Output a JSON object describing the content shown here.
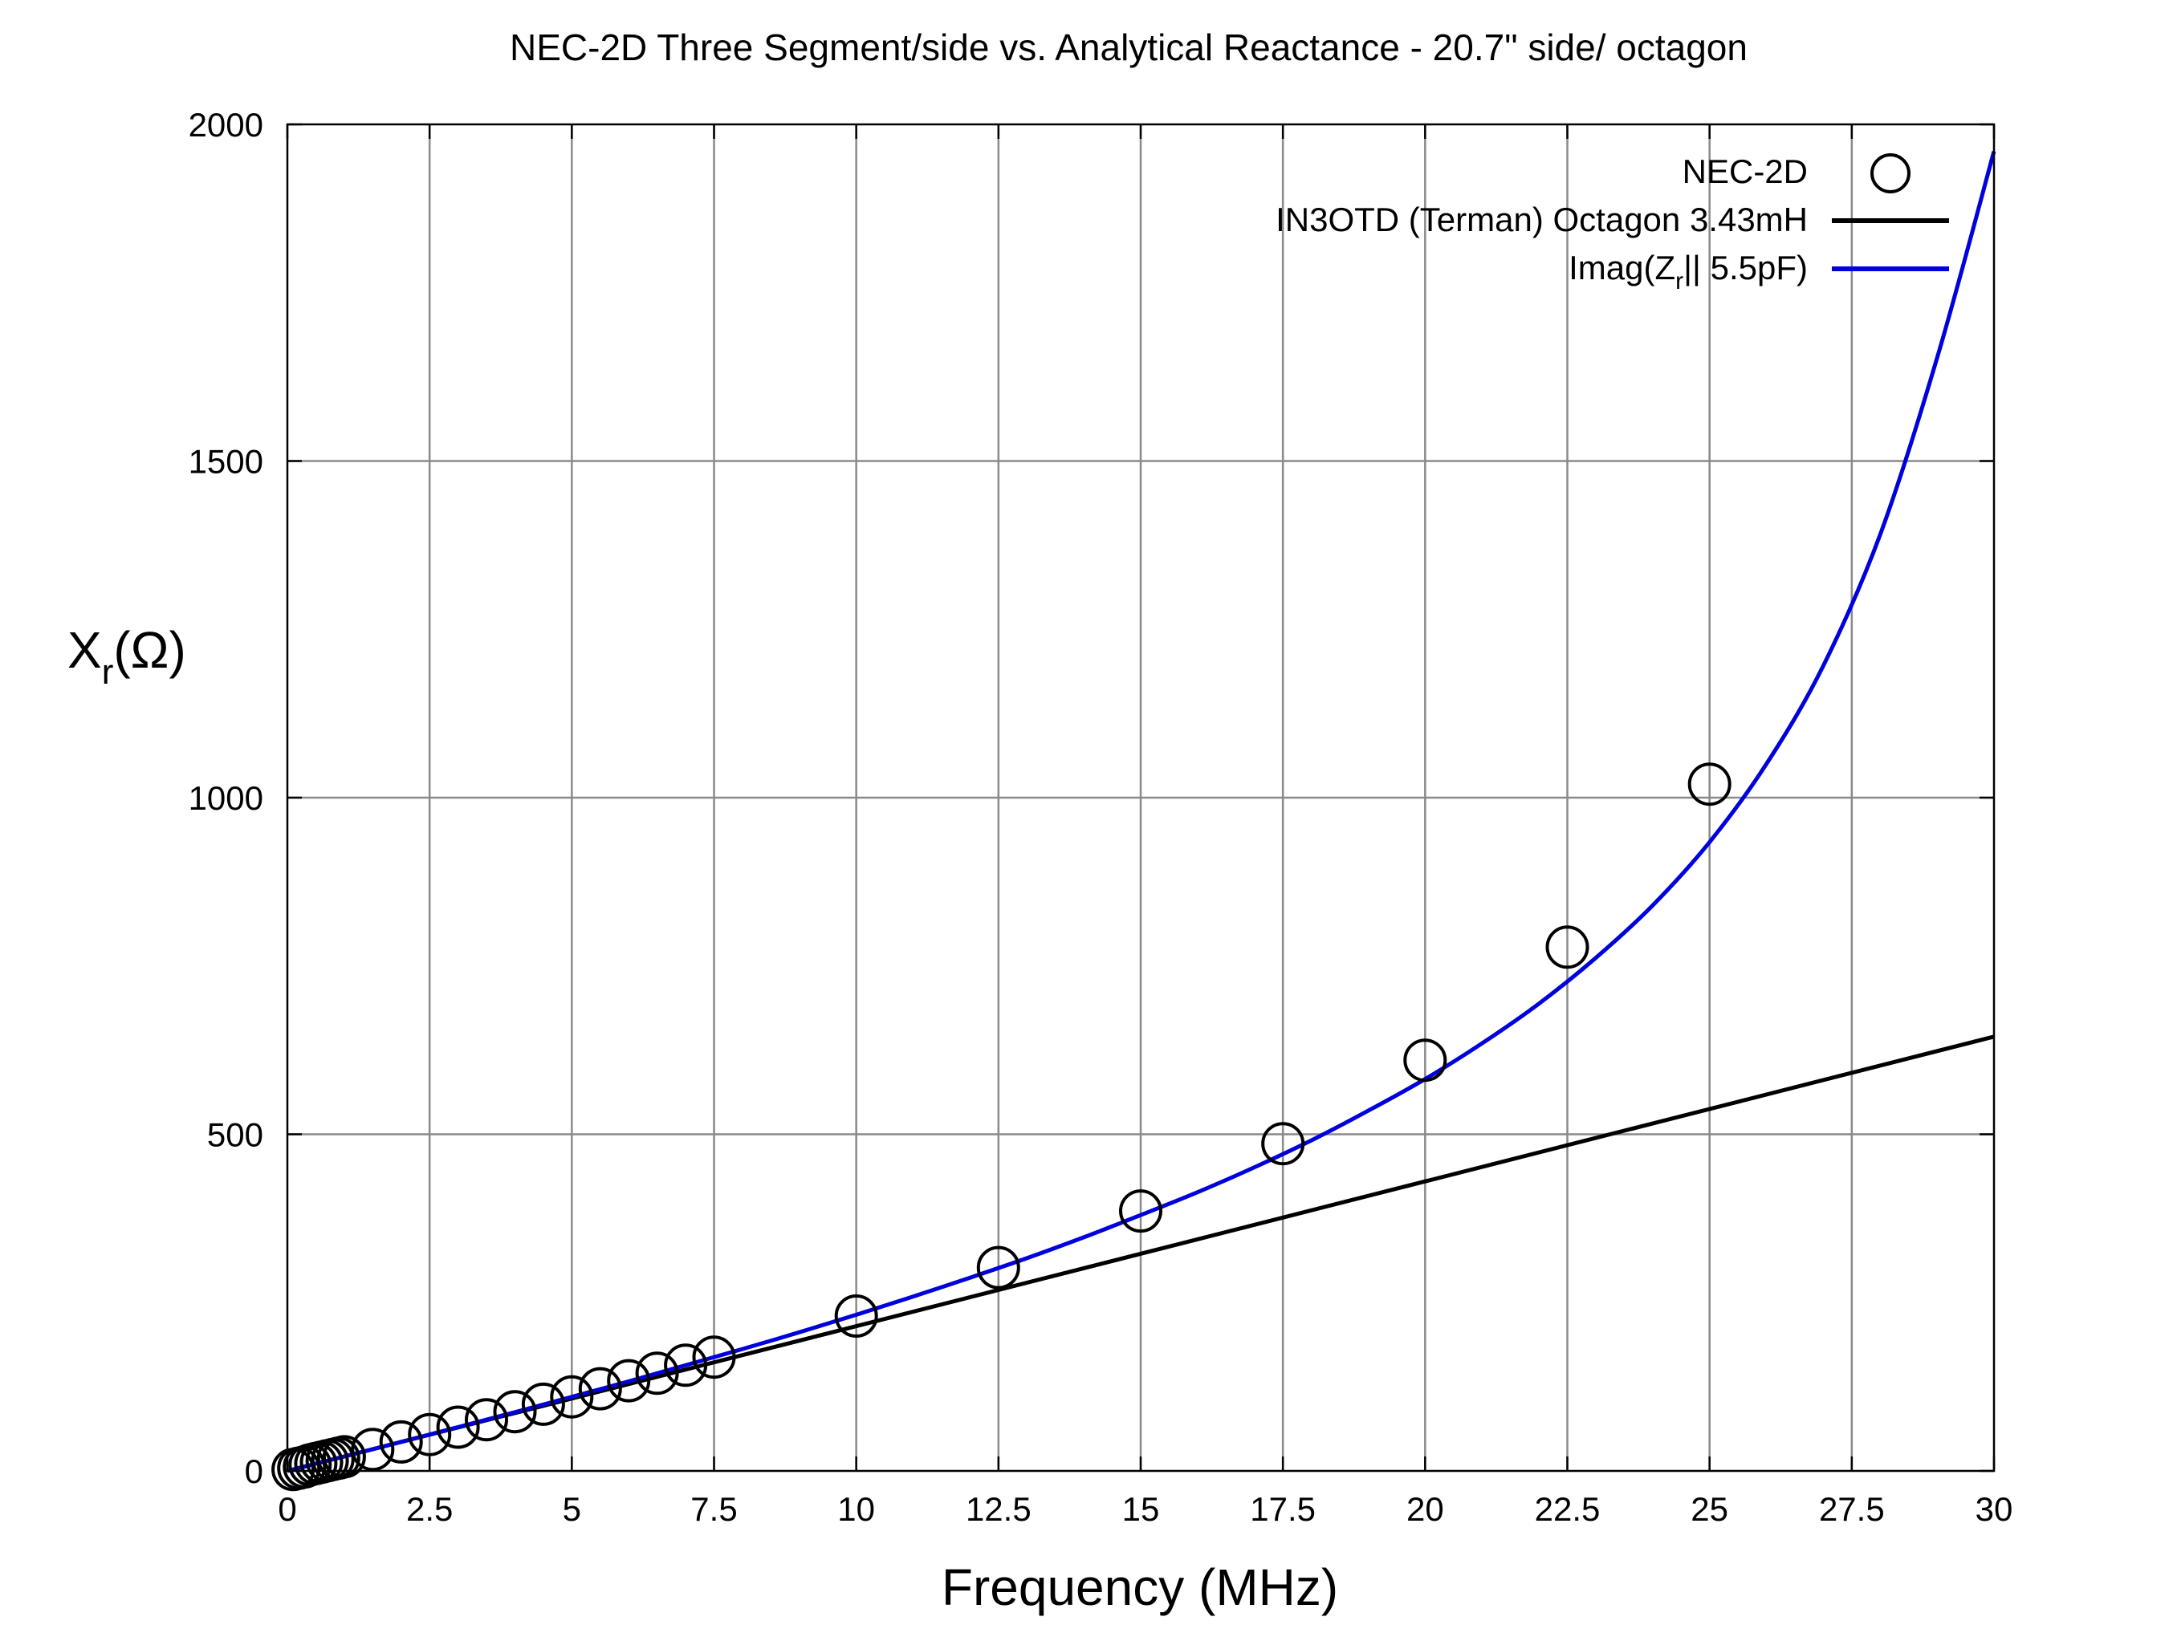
{
  "chart_data": {
    "type": "line",
    "title": "NEC-2D Three Segment/side vs. Analytical Reactance  - 20.7\" side/ octagon",
    "xlabel": "Frequency (MHz)",
    "ylabel_main": "X",
    "ylabel_sub": "r",
    "ylabel_tail": "(Ω)",
    "xlim": [
      0,
      30
    ],
    "ylim": [
      0,
      2000
    ],
    "x_ticks": [
      0,
      2.5,
      5,
      7.5,
      10,
      12.5,
      15,
      17.5,
      20,
      22.5,
      25,
      27.5,
      30
    ],
    "y_ticks": [
      0,
      500,
      1000,
      1500,
      2000
    ],
    "x_tick_labels": [
      "0",
      "2.5",
      "5",
      "7.5",
      "10",
      "12.5",
      "15",
      "17.5",
      "20",
      "22.5",
      "25",
      "27.5",
      "30"
    ],
    "y_tick_labels": [
      "0",
      "500",
      "1000",
      "1500",
      "2000"
    ],
    "grid": true,
    "legend_position": "top-right",
    "series": [
      {
        "name": "NEC-2D",
        "style": "open-circle",
        "color": "#000000",
        "x": [
          0.1,
          0.2,
          0.3,
          0.4,
          0.5,
          0.6,
          0.7,
          0.8,
          0.9,
          1.0,
          1.5,
          2.0,
          2.5,
          3.0,
          3.5,
          4.0,
          4.5,
          5.0,
          5.5,
          6.0,
          6.5,
          7.0,
          7.5,
          10,
          12.5,
          15,
          17.5,
          20,
          22.5,
          25
        ],
        "y": [
          2,
          4,
          6,
          9,
          11,
          13,
          15,
          17,
          19,
          21,
          32,
          43,
          54,
          65,
          76,
          88,
          99,
          110,
          122,
          134,
          145,
          157,
          169,
          230,
          302,
          386,
          486,
          610,
          778,
          1020
        ]
      },
      {
        "name": "IN3OTD (Terman) Octagon 3.43mH",
        "style": "line",
        "color": "#000000",
        "x": [
          0,
          30
        ],
        "y": [
          0,
          645
        ]
      },
      {
        "name_main": "Imag(Z",
        "name_sub": "r",
        "name_tail": "|| 5.5pF)",
        "style": "line",
        "color": "#0000dd",
        "x": [
          0,
          1,
          2,
          3,
          4,
          5,
          6,
          7,
          8,
          9,
          10,
          11,
          12,
          13,
          14,
          15,
          16,
          17,
          18,
          19,
          20,
          21,
          22,
          23,
          24,
          25,
          26,
          27,
          28,
          29,
          30
        ],
        "y": [
          0,
          21.5,
          43.2,
          65.1,
          87.3,
          110,
          133,
          157,
          181,
          206,
          232,
          259,
          287,
          316,
          347,
          380,
          414,
          451,
          491,
          535,
          582,
          635,
          694,
          762,
          840,
          934,
          1050,
          1196,
          1391,
          1653,
          1960
        ]
      }
    ]
  }
}
